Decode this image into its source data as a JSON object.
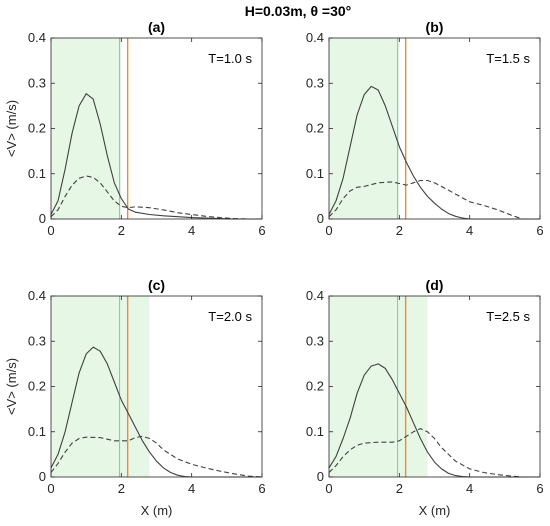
{
  "suptitle": "H=0.03m, θ =30°",
  "colors": {
    "shade": "#e6f7e6",
    "orange_line": "#f28c28",
    "teal_line": "#7fc7b8",
    "solid_series": "#404040",
    "dashed_series": "#404040",
    "axis": "#262626",
    "grid_box": "#262626"
  },
  "chart_data": [
    {
      "type": "line",
      "title": "(a)",
      "annotation": "T=1.0 s",
      "xlabel": "",
      "ylabel": "<V> (m/s)",
      "xlim": [
        0,
        6
      ],
      "ylim": [
        0,
        0.4
      ],
      "xticks": [
        "0",
        "2",
        "4",
        "6"
      ],
      "yticks": [
        "0",
        "0.1",
        "0.2",
        "0.3",
        "0.4"
      ],
      "shaded_x": [
        0,
        2.0
      ],
      "teal_vline_x": 1.95,
      "orange_vline_x": 2.18,
      "series": [
        {
          "style": "solid",
          "x": [
            0,
            0.2,
            0.4,
            0.6,
            0.8,
            1.0,
            1.2,
            1.4,
            1.6,
            1.8,
            2.0,
            2.2,
            2.4,
            2.8,
            3.2,
            3.6,
            4.0,
            4.4,
            4.8,
            5.2,
            5.6,
            6.0
          ],
          "y": [
            0.01,
            0.04,
            0.11,
            0.19,
            0.25,
            0.277,
            0.265,
            0.21,
            0.14,
            0.08,
            0.045,
            0.022,
            0.015,
            0.01,
            0.007,
            0.005,
            0.003,
            0.002,
            0.001,
            0.0,
            0.0,
            0.0
          ]
        },
        {
          "style": "dashed",
          "x": [
            0,
            0.2,
            0.4,
            0.6,
            0.8,
            1.0,
            1.2,
            1.4,
            1.6,
            1.8,
            2.0,
            2.2,
            2.4,
            2.8,
            3.2,
            3.6,
            4.0,
            4.4,
            4.8,
            5.2,
            5.6,
            6.0
          ],
          "y": [
            0.005,
            0.02,
            0.05,
            0.075,
            0.09,
            0.095,
            0.092,
            0.08,
            0.06,
            0.04,
            0.028,
            0.025,
            0.027,
            0.025,
            0.02,
            0.014,
            0.01,
            0.006,
            0.003,
            0.001,
            0.0,
            0.0
          ]
        }
      ]
    },
    {
      "type": "line",
      "title": "(b)",
      "annotation": "T=1.5 s",
      "xlabel": "",
      "ylabel": "",
      "xlim": [
        0,
        6
      ],
      "ylim": [
        0,
        0.4
      ],
      "xticks": [
        "0",
        "2",
        "4",
        "6"
      ],
      "yticks": [
        "0",
        "0.1",
        "0.2",
        "0.3",
        "0.4"
      ],
      "shaded_x": [
        0,
        2.0
      ],
      "teal_vline_x": 1.95,
      "orange_vline_x": 2.18,
      "series": [
        {
          "style": "solid",
          "x": [
            0,
            0.2,
            0.4,
            0.6,
            0.8,
            1.0,
            1.2,
            1.4,
            1.6,
            1.8,
            2.0,
            2.2,
            2.4,
            2.6,
            2.8,
            3.0,
            3.2,
            3.4,
            3.6,
            3.8,
            4.0,
            4.2,
            6.0
          ],
          "y": [
            0.01,
            0.04,
            0.09,
            0.16,
            0.23,
            0.275,
            0.293,
            0.285,
            0.25,
            0.205,
            0.16,
            0.125,
            0.095,
            0.07,
            0.05,
            0.035,
            0.022,
            0.012,
            0.006,
            0.002,
            0.0,
            0.0,
            0.0
          ]
        },
        {
          "style": "dashed",
          "x": [
            0,
            0.2,
            0.4,
            0.6,
            0.8,
            1.0,
            1.4,
            1.8,
            2.2,
            2.4,
            2.6,
            2.8,
            3.0,
            3.2,
            3.6,
            4.0,
            4.4,
            4.8,
            5.2,
            5.5,
            5.8,
            6.0
          ],
          "y": [
            0.005,
            0.02,
            0.045,
            0.062,
            0.07,
            0.072,
            0.08,
            0.082,
            0.075,
            0.08,
            0.085,
            0.085,
            0.08,
            0.072,
            0.055,
            0.038,
            0.03,
            0.02,
            0.008,
            0.0,
            0.0,
            0.0
          ]
        }
      ]
    },
    {
      "type": "line",
      "title": "(c)",
      "annotation": "T=2.0 s",
      "xlabel": "X (m)",
      "ylabel": "<V> (m/s)",
      "xlim": [
        0,
        6
      ],
      "ylim": [
        0,
        0.4
      ],
      "xticks": [
        "0",
        "2",
        "4",
        "6"
      ],
      "yticks": [
        "0",
        "0.1",
        "0.2",
        "0.3",
        "0.4"
      ],
      "shaded_x": [
        0,
        2.8
      ],
      "teal_vline_x": 1.95,
      "orange_vline_x": 2.18,
      "series": [
        {
          "style": "solid",
          "x": [
            0,
            0.2,
            0.4,
            0.6,
            0.8,
            1.0,
            1.2,
            1.4,
            1.6,
            1.8,
            2.0,
            2.2,
            2.4,
            2.6,
            2.8,
            3.0,
            3.2,
            3.4,
            3.6,
            3.8,
            4.0,
            6.0
          ],
          "y": [
            0.02,
            0.05,
            0.1,
            0.165,
            0.23,
            0.272,
            0.287,
            0.278,
            0.25,
            0.21,
            0.17,
            0.14,
            0.11,
            0.08,
            0.055,
            0.035,
            0.02,
            0.01,
            0.004,
            0.001,
            0.0,
            0.0
          ]
        },
        {
          "style": "dashed",
          "x": [
            0,
            0.2,
            0.4,
            0.6,
            0.8,
            1.0,
            1.4,
            1.8,
            2.2,
            2.4,
            2.6,
            2.8,
            3.0,
            3.2,
            3.6,
            4.0,
            4.4,
            4.8,
            5.2,
            5.6,
            6.0
          ],
          "y": [
            0.01,
            0.03,
            0.055,
            0.075,
            0.085,
            0.088,
            0.087,
            0.08,
            0.08,
            0.087,
            0.09,
            0.085,
            0.075,
            0.06,
            0.04,
            0.028,
            0.02,
            0.013,
            0.007,
            0.002,
            0.0
          ]
        }
      ]
    },
    {
      "type": "line",
      "title": "(d)",
      "annotation": "T=2.5 s",
      "xlabel": "X (m)",
      "ylabel": "",
      "xlim": [
        0,
        6
      ],
      "ylim": [
        0,
        0.4
      ],
      "xticks": [
        "0",
        "2",
        "4",
        "6"
      ],
      "yticks": [
        "0",
        "0.1",
        "0.2",
        "0.3",
        "0.4"
      ],
      "shaded_x": [
        0,
        2.8
      ],
      "teal_vline_x": 1.95,
      "orange_vline_x": 2.18,
      "series": [
        {
          "style": "solid",
          "x": [
            0,
            0.2,
            0.4,
            0.6,
            0.8,
            1.0,
            1.2,
            1.4,
            1.6,
            1.8,
            2.0,
            2.2,
            2.4,
            2.6,
            2.8,
            3.0,
            3.2,
            3.4,
            3.6,
            3.8,
            4.0,
            6.0
          ],
          "y": [
            0.02,
            0.045,
            0.085,
            0.13,
            0.185,
            0.225,
            0.245,
            0.25,
            0.24,
            0.215,
            0.185,
            0.155,
            0.12,
            0.085,
            0.055,
            0.033,
            0.018,
            0.008,
            0.003,
            0.001,
            0.0,
            0.0
          ]
        },
        {
          "style": "dashed",
          "x": [
            0,
            0.2,
            0.4,
            0.6,
            0.8,
            1.0,
            1.4,
            1.8,
            2.0,
            2.2,
            2.4,
            2.6,
            2.8,
            3.0,
            3.2,
            3.6,
            4.0,
            4.4,
            4.8,
            5.2,
            5.5,
            6.0
          ],
          "y": [
            0.01,
            0.025,
            0.045,
            0.06,
            0.07,
            0.075,
            0.077,
            0.077,
            0.08,
            0.09,
            0.1,
            0.107,
            0.1,
            0.085,
            0.065,
            0.035,
            0.018,
            0.01,
            0.005,
            0.002,
            0.0,
            0.0
          ]
        }
      ]
    }
  ]
}
